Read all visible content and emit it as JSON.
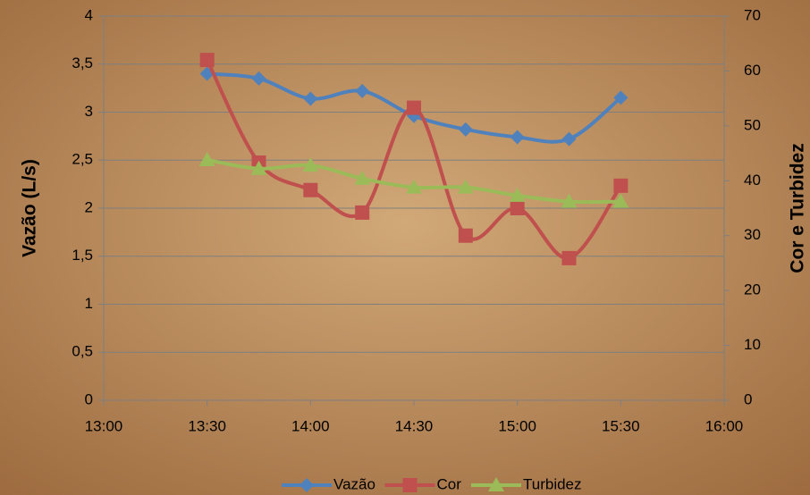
{
  "chart_data": {
    "type": "line",
    "x": [
      "13:30",
      "13:45",
      "14:00",
      "14:15",
      "14:30",
      "14:45",
      "15:00",
      "15:15",
      "15:30"
    ],
    "xlim": [
      "13:00",
      "16:00"
    ],
    "xticks": [
      "13:00",
      "13:30",
      "14:00",
      "14:30",
      "15:00",
      "15:30",
      "16:00"
    ],
    "ylabel": "Vazão (L/s)",
    "y2label": "Cor e Turbidez",
    "ylim": [
      0,
      4
    ],
    "yticks": [
      0,
      {
        "value": 0.5,
        "label": "0,5"
      },
      1,
      {
        "value": 1.5,
        "label": "1,5"
      },
      2,
      {
        "value": 2.5,
        "label": "2,5"
      },
      3,
      {
        "value": 3.5,
        "label": "3,5"
      },
      4
    ],
    "y2lim": [
      0,
      70
    ],
    "y2ticks": [
      0,
      10,
      20,
      30,
      40,
      50,
      60,
      70
    ],
    "grid": true,
    "legend": "bottom",
    "series": [
      {
        "name": "Vazão",
        "color": "#4f81bd",
        "marker": "diamond",
        "values": [
          3.4,
          3.35,
          3.14,
          3.22,
          2.96,
          2.82,
          2.74,
          2.72,
          3.15
        ]
      },
      {
        "name": "Cor",
        "color": "#c0504d",
        "marker": "square",
        "axis": "y2",
        "values": [
          62.0,
          43.3,
          38.3,
          34.2,
          53.3,
          30.0,
          35.0,
          25.9,
          39.1
        ]
      },
      {
        "name": "Turbidez",
        "color": "#9bbb59",
        "marker": "triangle",
        "axis": "y2",
        "values": [
          43.8,
          42.2,
          42.8,
          40.4,
          38.8,
          38.8,
          37.3,
          36.2,
          36.2
        ]
      }
    ]
  }
}
